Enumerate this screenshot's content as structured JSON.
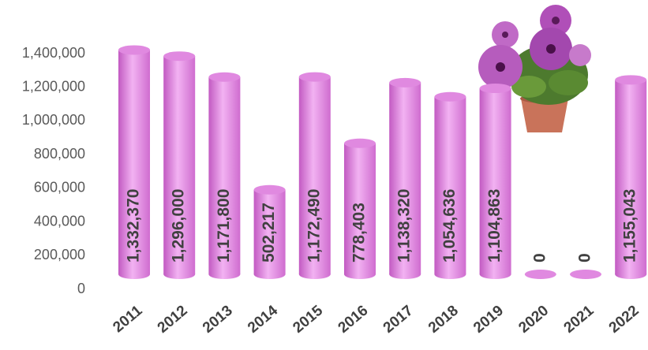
{
  "chart_data": {
    "type": "bar3d",
    "categories": [
      "2011",
      "2012",
      "2013",
      "2014",
      "2015",
      "2016",
      "2017",
      "2018",
      "2019",
      "2020",
      "2021",
      "2022"
    ],
    "values": [
      1332370,
      1296000,
      1171800,
      502217,
      1172490,
      778403,
      1138320,
      1054636,
      1104863,
      0,
      0,
      1155043
    ],
    "value_labels": [
      "1,332,370",
      "1,296,000",
      "1,171,800",
      "502,217",
      "1,172,490",
      "778,403",
      "1,138,320",
      "1,054,636",
      "1,104,863",
      "0",
      "0",
      "1,155,043"
    ],
    "color": "#e089e0",
    "ylim": [
      0,
      1400000
    ],
    "yticks": [
      0,
      {
        "value": 200000,
        "label": "200,000"
      },
      {
        "value": 400000,
        "label": "400,000"
      },
      {
        "value": 600000,
        "label": "600,000"
      },
      {
        "value": 800000,
        "label": "800,000"
      },
      {
        "value": 1000000,
        "label": "1,000,000"
      },
      {
        "value": 1200000,
        "label": "1,200,000"
      },
      {
        "value": 1400000,
        "label": "1,400,000"
      }
    ],
    "grid": false
  }
}
